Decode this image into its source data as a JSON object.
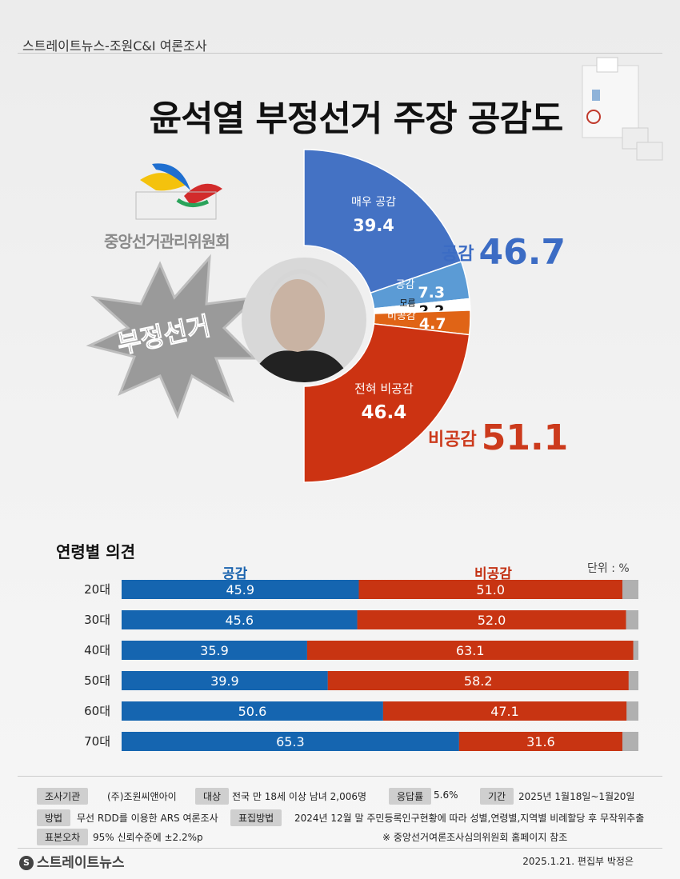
{
  "header": {
    "source_line": "스트레이트뉴스-조원C&I 여론조사"
  },
  "title": "윤석열 부정선거 주장 공감도",
  "decor": {
    "logo_text": "중앙선거관리위원회",
    "burst_text": "부정선거"
  },
  "summary": {
    "agree_label": "공감",
    "agree_value": "46.7",
    "disagree_label": "비공감",
    "disagree_value": "51.1"
  },
  "colors": {
    "strong_agree": "#4472c4",
    "agree": "#5b9bd5",
    "unknown": "#ffffff",
    "disagree": "#e06416",
    "strong_disagree": "#cc3312",
    "bar_agree": "#1565b0",
    "bar_disagree": "#c83412",
    "bar_rest": "#b0b0b0"
  },
  "chart_data": [
    {
      "type": "pie",
      "categories": [
        "매우 공감",
        "공감",
        "모름",
        "비공감",
        "전혀 비공감"
      ],
      "values": [
        39.4,
        7.3,
        2.2,
        4.7,
        46.4
      ]
    },
    {
      "type": "bar",
      "title": "연령별 의견",
      "unit": "단위 : %",
      "categories": [
        "20대",
        "30대",
        "40대",
        "50대",
        "60대",
        "70대"
      ],
      "series": [
        {
          "name": "공감",
          "values": [
            45.9,
            45.6,
            35.9,
            39.9,
            50.6,
            65.3
          ]
        },
        {
          "name": "비공감",
          "values": [
            51.0,
            52.0,
            63.1,
            58.2,
            47.1,
            31.6
          ]
        }
      ],
      "ylim": [
        0,
        100
      ]
    }
  ],
  "footer": {
    "org_label": "조사기관",
    "org_value": "(주)조원씨앤아이",
    "target_label": "대상",
    "target_value": "전국 만 18세 이상 남녀 2,006명",
    "rate_label": "응답률",
    "rate_value": "5.6%",
    "period_label": "기간",
    "period_value": "2025년 1월18일~1월20일",
    "method_label": "방법",
    "method_value": "무선 RDD를 이용한 ARS 여론조사",
    "sampling_label": "표집방법",
    "sampling_value": "2024년 12월 말 주민등록인구현황에 따라 성별,연령별,지역별 비례할당 후 무작위추출",
    "error_label": "표본오차",
    "error_value": "95% 신뢰수준에 ±2.2%p",
    "note": "※ 중앙선거여론조사심의위원회 홈페이지 참조",
    "brand": "스트레이트뉴스",
    "date_line": "2025.1.21. 편집부 박정은"
  }
}
